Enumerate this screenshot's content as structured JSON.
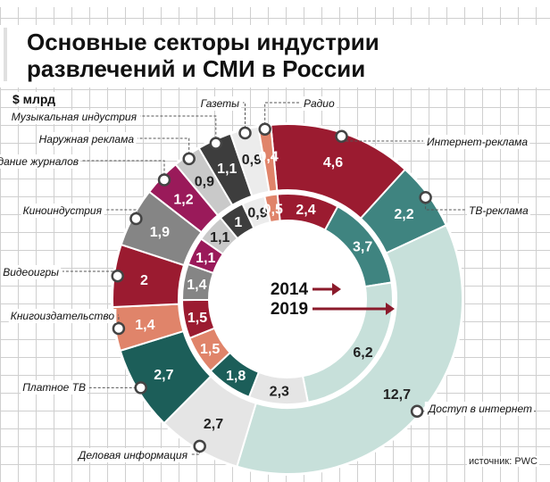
{
  "title_line1": "Основные секторы индустрии",
  "title_line2": "развлечений и СМИ в России",
  "unit": "$ млрд",
  "source": "источник: PWC",
  "colors": {
    "dark_red": "#9b1b30",
    "teal": "#3f8480",
    "light_teal": "#c7e0da",
    "dark_teal": "#1c5e59",
    "light_gray": "#e5e5e5",
    "salmon": "#e0846a",
    "gray": "#858585",
    "magenta": "#9a1a5a",
    "light_gray2": "#c9c9c9",
    "dark_gray": "#3d3d3d",
    "very_light": "#ececec",
    "arrow": "#8b1a2b"
  },
  "chart_data": {
    "type": "donut",
    "categories": [
      "Интернет-реклама",
      "ТВ-реклама",
      "Доступ в интернет",
      "Деловая информация",
      "Платное ТВ",
      "Книгоиздательство",
      "Видеоигры",
      "Киноиндустрия",
      "Издание журналов",
      "Наружная реклама",
      "Музыкальная индустрия",
      "Газеты",
      "Радио"
    ],
    "series": [
      {
        "name": "2014",
        "values": [
          2.4,
          3.7,
          6.2,
          2.3,
          1.8,
          1.5,
          1.5,
          1.4,
          1.1,
          1.1,
          1,
          0.9,
          0.5
        ]
      },
      {
        "name": "2019",
        "values": [
          4.6,
          2.2,
          12.7,
          2.7,
          2.7,
          1.4,
          2,
          1.9,
          1.2,
          0.9,
          1.1,
          0.9,
          0.4
        ]
      }
    ],
    "colors": [
      "#9b1b30",
      "#3f8480",
      "#c7e0da",
      "#e5e5e5",
      "#1c5e59",
      "#e0846a",
      "#9b1b30",
      "#858585",
      "#9a1a5a",
      "#c9c9c9",
      "#3d3d3d",
      "#ececec",
      "#e0846a"
    ]
  }
}
